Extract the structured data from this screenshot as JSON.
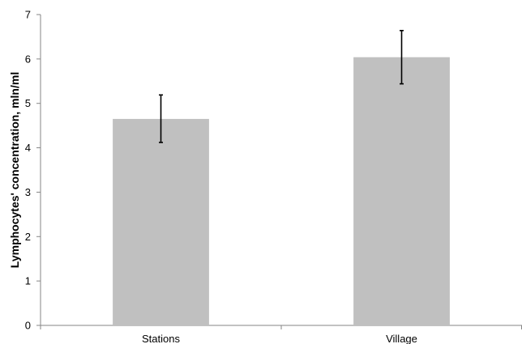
{
  "chart_data": {
    "type": "bar",
    "title": "",
    "xlabel": "",
    "ylabel": "Lymphocytes' concentration, mln/ml",
    "categories": [
      "Stations",
      "Village"
    ],
    "values": [
      4.65,
      6.04
    ],
    "error_low": [
      4.12,
      5.44
    ],
    "error_high": [
      5.19,
      6.64
    ],
    "ylim": [
      0,
      7
    ],
    "yticks": [
      "0",
      "1",
      "2",
      "3",
      "4",
      "5",
      "6",
      "7"
    ],
    "grid": false,
    "legend": "none",
    "bar_color": "#c0c0c0",
    "error_bar_color": "#000000"
  }
}
